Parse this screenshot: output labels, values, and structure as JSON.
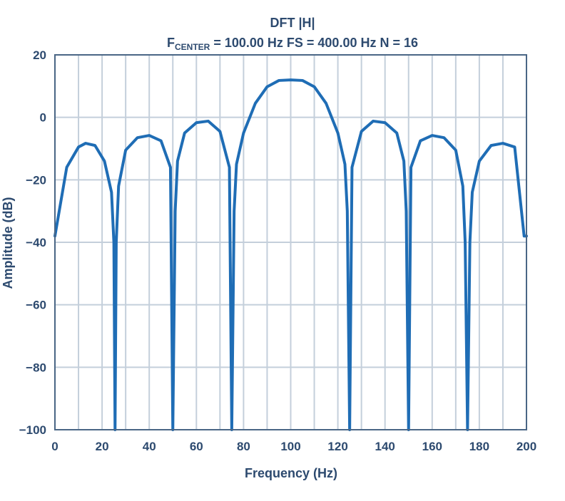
{
  "chart_data": {
    "type": "line",
    "title": "DFT |H|",
    "subtitle": {
      "prefix": "F",
      "subscript": "CENTER",
      "rest": " = 100.00 Hz FS = 400.00 Hz N = 16"
    },
    "xlabel": "Frequency (Hz)",
    "ylabel": "Amplitude (dB)",
    "xlim": [
      0,
      200
    ],
    "ylim": [
      -100,
      20
    ],
    "xticks": [
      0,
      20,
      40,
      60,
      80,
      100,
      120,
      140,
      160,
      180,
      200
    ],
    "yticks": [
      20,
      0,
      -20,
      -40,
      -60,
      -80,
      -100
    ],
    "grid": true,
    "line_color": "#1f6db5",
    "series": [
      {
        "description_params": {
          "f_center": 100,
          "fs": 400,
          "n": 16
        },
        "x": [
          0,
          5,
          10,
          13,
          17,
          21,
          24,
          25,
          25.5,
          26,
          27,
          30,
          35,
          40,
          45,
          49,
          50,
          51,
          52,
          55,
          60,
          65,
          70,
          74,
          75,
          76,
          77,
          80,
          85,
          90,
          95,
          100,
          105,
          110,
          115,
          120,
          123,
          124,
          125,
          126,
          130,
          135,
          140,
          145,
          148,
          149,
          150,
          151,
          155,
          160,
          165,
          170,
          173,
          174,
          175,
          176,
          177,
          180,
          185,
          190,
          195,
          199,
          200
        ],
        "y": [
          -38,
          -16,
          -9.5,
          -8.3,
          -9,
          -14,
          -24,
          -40,
          -100,
          -40,
          -22,
          -10.5,
          -6.5,
          -5.8,
          -7.5,
          -16,
          -100,
          -30,
          -14,
          -5,
          -1.7,
          -1.2,
          -4.5,
          -16,
          -100,
          -30,
          -15,
          -5,
          4.5,
          9.8,
          11.8,
          12,
          11.8,
          9.8,
          4.5,
          -5,
          -15,
          -30,
          -100,
          -16,
          -4.5,
          -1.2,
          -1.7,
          -5,
          -14,
          -30,
          -100,
          -16,
          -7.5,
          -5.8,
          -6.5,
          -10.5,
          -22,
          -40,
          -100,
          -40,
          -24,
          -14,
          -9,
          -8.3,
          -9.5,
          -38,
          -38
        ]
      }
    ]
  }
}
